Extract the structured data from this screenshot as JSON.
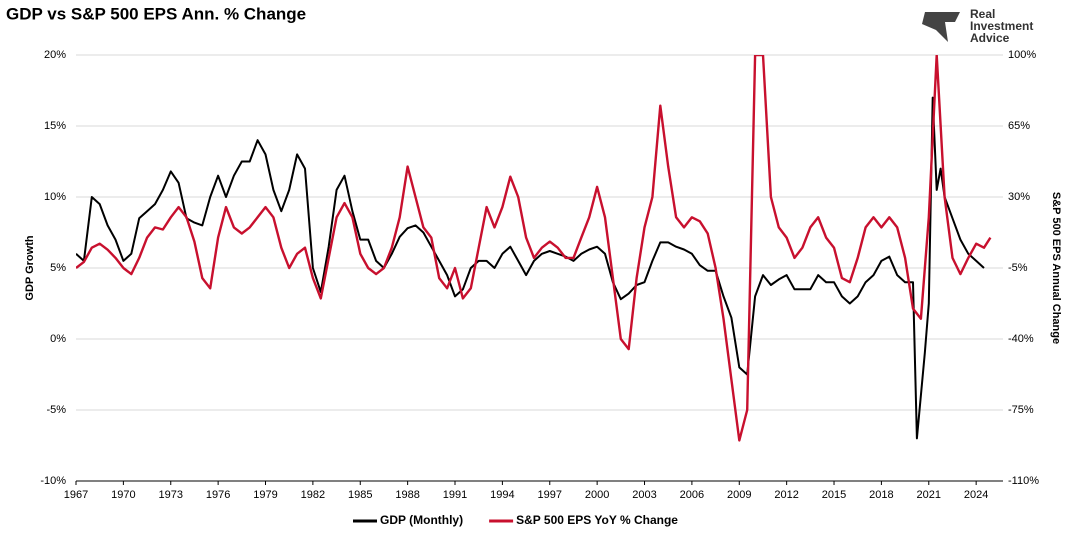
{
  "chart_data": {
    "type": "line",
    "title": "GDP vs S&P 500 EPS Ann. % Change",
    "logo": "Real Investment Advice",
    "y_label": "GDP Growth",
    "y2_label": "S&P 500 EPS Annual Change",
    "xlim": [
      1967,
      2025.7
    ],
    "xticks": [
      1967,
      1970,
      1973,
      1976,
      1979,
      1982,
      1985,
      1988,
      1991,
      1994,
      1997,
      2000,
      2003,
      2006,
      2009,
      2012,
      2015,
      2018,
      2021,
      2024
    ],
    "ylim": [
      -10,
      20
    ],
    "yticks": [
      {
        "value": -10,
        "label": "-10%"
      },
      {
        "value": -5,
        "label": "-5%"
      },
      {
        "value": 0,
        "label": "0%"
      },
      {
        "value": 5,
        "label": "5%"
      },
      {
        "value": 10,
        "label": "10%"
      },
      {
        "value": 15,
        "label": "15%"
      },
      {
        "value": 20,
        "label": "20%"
      }
    ],
    "y2lim": [
      -110,
      100
    ],
    "y2ticks": [
      {
        "value": -110,
        "label": "-110%"
      },
      {
        "value": -75,
        "label": "-75%"
      },
      {
        "value": -40,
        "label": "-40%"
      },
      {
        "value": -5,
        "label": "-5%"
      },
      {
        "value": 30,
        "label": "30%"
      },
      {
        "value": 65,
        "label": "65%"
      },
      {
        "value": 100,
        "label": "100%"
      }
    ],
    "grid": true,
    "legend": "bottom",
    "series": [
      {
        "name": "GDP (Monthly)",
        "color": "#000000",
        "x": [
          1967,
          1967.5,
          1968,
          1968.5,
          1969,
          1969.5,
          1970,
          1970.5,
          1971,
          1971.5,
          1972,
          1972.5,
          1973,
          1973.5,
          1974,
          1974.5,
          1975,
          1975.5,
          1976,
          1976.5,
          1977,
          1977.5,
          1978,
          1978.5,
          1979,
          1979.5,
          1980,
          1980.5,
          1981,
          1981.5,
          1982,
          1982.5,
          1983,
          1983.5,
          1984,
          1984.5,
          1985,
          1985.5,
          1986,
          1986.5,
          1987,
          1987.5,
          1988,
          1988.5,
          1989,
          1989.5,
          1990,
          1990.5,
          1991,
          1991.5,
          1992,
          1992.5,
          1993,
          1993.5,
          1994,
          1994.5,
          1995,
          1995.5,
          1996,
          1996.5,
          1997,
          1997.5,
          1998,
          1998.5,
          1999,
          1999.5,
          2000,
          2000.5,
          2001,
          2001.5,
          2002,
          2002.5,
          2003,
          2003.5,
          2004,
          2004.5,
          2005,
          2005.5,
          2006,
          2006.5,
          2007,
          2007.5,
          2008,
          2008.5,
          2009,
          2009.5,
          2010,
          2010.5,
          2011,
          2011.5,
          2012,
          2012.5,
          2013,
          2013.5,
          2014,
          2014.5,
          2015,
          2015.5,
          2016,
          2016.5,
          2017,
          2017.5,
          2018,
          2018.5,
          2019,
          2019.5,
          2020,
          2020.25,
          2020.75,
          2021,
          2021.25,
          2021.5,
          2021.75,
          2022,
          2022.5,
          2023,
          2023.5,
          2024,
          2024.5
        ],
        "values": [
          6,
          5.5,
          10,
          9.5,
          8,
          7,
          5.5,
          6,
          8.5,
          9,
          9.5,
          10.5,
          11.8,
          11,
          8.5,
          8.2,
          8,
          10,
          11.5,
          10,
          11.5,
          12.5,
          12.5,
          14,
          13,
          10.5,
          9,
          10.5,
          13,
          12,
          5,
          3.3,
          6.5,
          10.5,
          11.5,
          9,
          7,
          7,
          5.5,
          5,
          6,
          7.2,
          7.8,
          8,
          7.5,
          6.5,
          5.5,
          4.5,
          3,
          3.5,
          5,
          5.5,
          5.5,
          5,
          6,
          6.5,
          5.5,
          4.5,
          5.5,
          6,
          6.2,
          6,
          5.8,
          5.5,
          6,
          6.3,
          6.5,
          6,
          4,
          2.8,
          3.2,
          3.8,
          4,
          5.5,
          6.8,
          6.8,
          6.5,
          6.3,
          6,
          5.2,
          4.8,
          4.8,
          3,
          1.5,
          -2,
          -2.5,
          3,
          4.5,
          3.8,
          4.2,
          4.5,
          3.5,
          3.5,
          3.5,
          4.5,
          4,
          4,
          3,
          2.5,
          3,
          4,
          4.5,
          5.5,
          5.8,
          4.5,
          4,
          4,
          -7,
          -1,
          2.5,
          17,
          10.5,
          12,
          10,
          8.5,
          7,
          6,
          5.5,
          5
        ]
      },
      {
        "name": "S&P 500 EPS YoY % Change",
        "color": "#c8102e",
        "axis": "y2",
        "x": [
          1967,
          1967.5,
          1968,
          1968.5,
          1969,
          1969.5,
          1970,
          1970.5,
          1971,
          1971.5,
          1972,
          1972.5,
          1973,
          1973.5,
          1974,
          1974.5,
          1975,
          1975.5,
          1976,
          1976.5,
          1977,
          1977.5,
          1978,
          1978.5,
          1979,
          1979.5,
          1980,
          1980.5,
          1981,
          1981.5,
          1982,
          1982.5,
          1983,
          1983.5,
          1984,
          1984.5,
          1985,
          1985.5,
          1986,
          1986.5,
          1987,
          1987.5,
          1988,
          1988.5,
          1989,
          1989.5,
          1990,
          1990.5,
          1991,
          1991.5,
          1992,
          1992.5,
          1993,
          1993.5,
          1994,
          1994.5,
          1995,
          1995.5,
          1996,
          1996.5,
          1997,
          1997.5,
          1998,
          1998.5,
          1999,
          1999.5,
          2000,
          2000.5,
          2001,
          2001.5,
          2002,
          2002.5,
          2003,
          2003.5,
          2004,
          2004.5,
          2005,
          2005.5,
          2006,
          2006.5,
          2007,
          2007.5,
          2008,
          2008.5,
          2009,
          2009.5,
          2010,
          2010.5,
          2011,
          2011.5,
          2012,
          2012.5,
          2013,
          2013.5,
          2014,
          2014.5,
          2015,
          2015.5,
          2016,
          2016.5,
          2017,
          2017.5,
          2018,
          2018.5,
          2019,
          2019.5,
          2020,
          2020.5,
          2021,
          2021.5,
          2022,
          2022.5,
          2023,
          2023.5,
          2024,
          2024.5,
          2024.9
        ],
        "values": [
          -5,
          -2,
          5,
          7,
          4,
          0,
          -5,
          -8,
          0,
          10,
          15,
          14,
          20,
          25,
          20,
          8,
          -10,
          -15,
          10,
          25,
          15,
          12,
          15,
          20,
          25,
          20,
          5,
          -5,
          2,
          5,
          -10,
          -20,
          0,
          20,
          27,
          20,
          2,
          -5,
          -8,
          -5,
          5,
          20,
          45,
          30,
          15,
          10,
          -10,
          -15,
          -5,
          -20,
          -15,
          5,
          25,
          15,
          25,
          40,
          30,
          10,
          0,
          5,
          8,
          5,
          0,
          0,
          10,
          20,
          35,
          20,
          -10,
          -40,
          -45,
          -10,
          15,
          30,
          75,
          45,
          20,
          15,
          20,
          18,
          12,
          -5,
          -30,
          -60,
          -90,
          -75,
          100,
          100,
          30,
          15,
          10,
          0,
          5,
          15,
          20,
          10,
          5,
          -10,
          -12,
          0,
          15,
          20,
          15,
          20,
          15,
          0,
          -25,
          -30,
          20,
          100,
          30,
          0,
          -8,
          0,
          7,
          5,
          10
        ]
      }
    ]
  }
}
